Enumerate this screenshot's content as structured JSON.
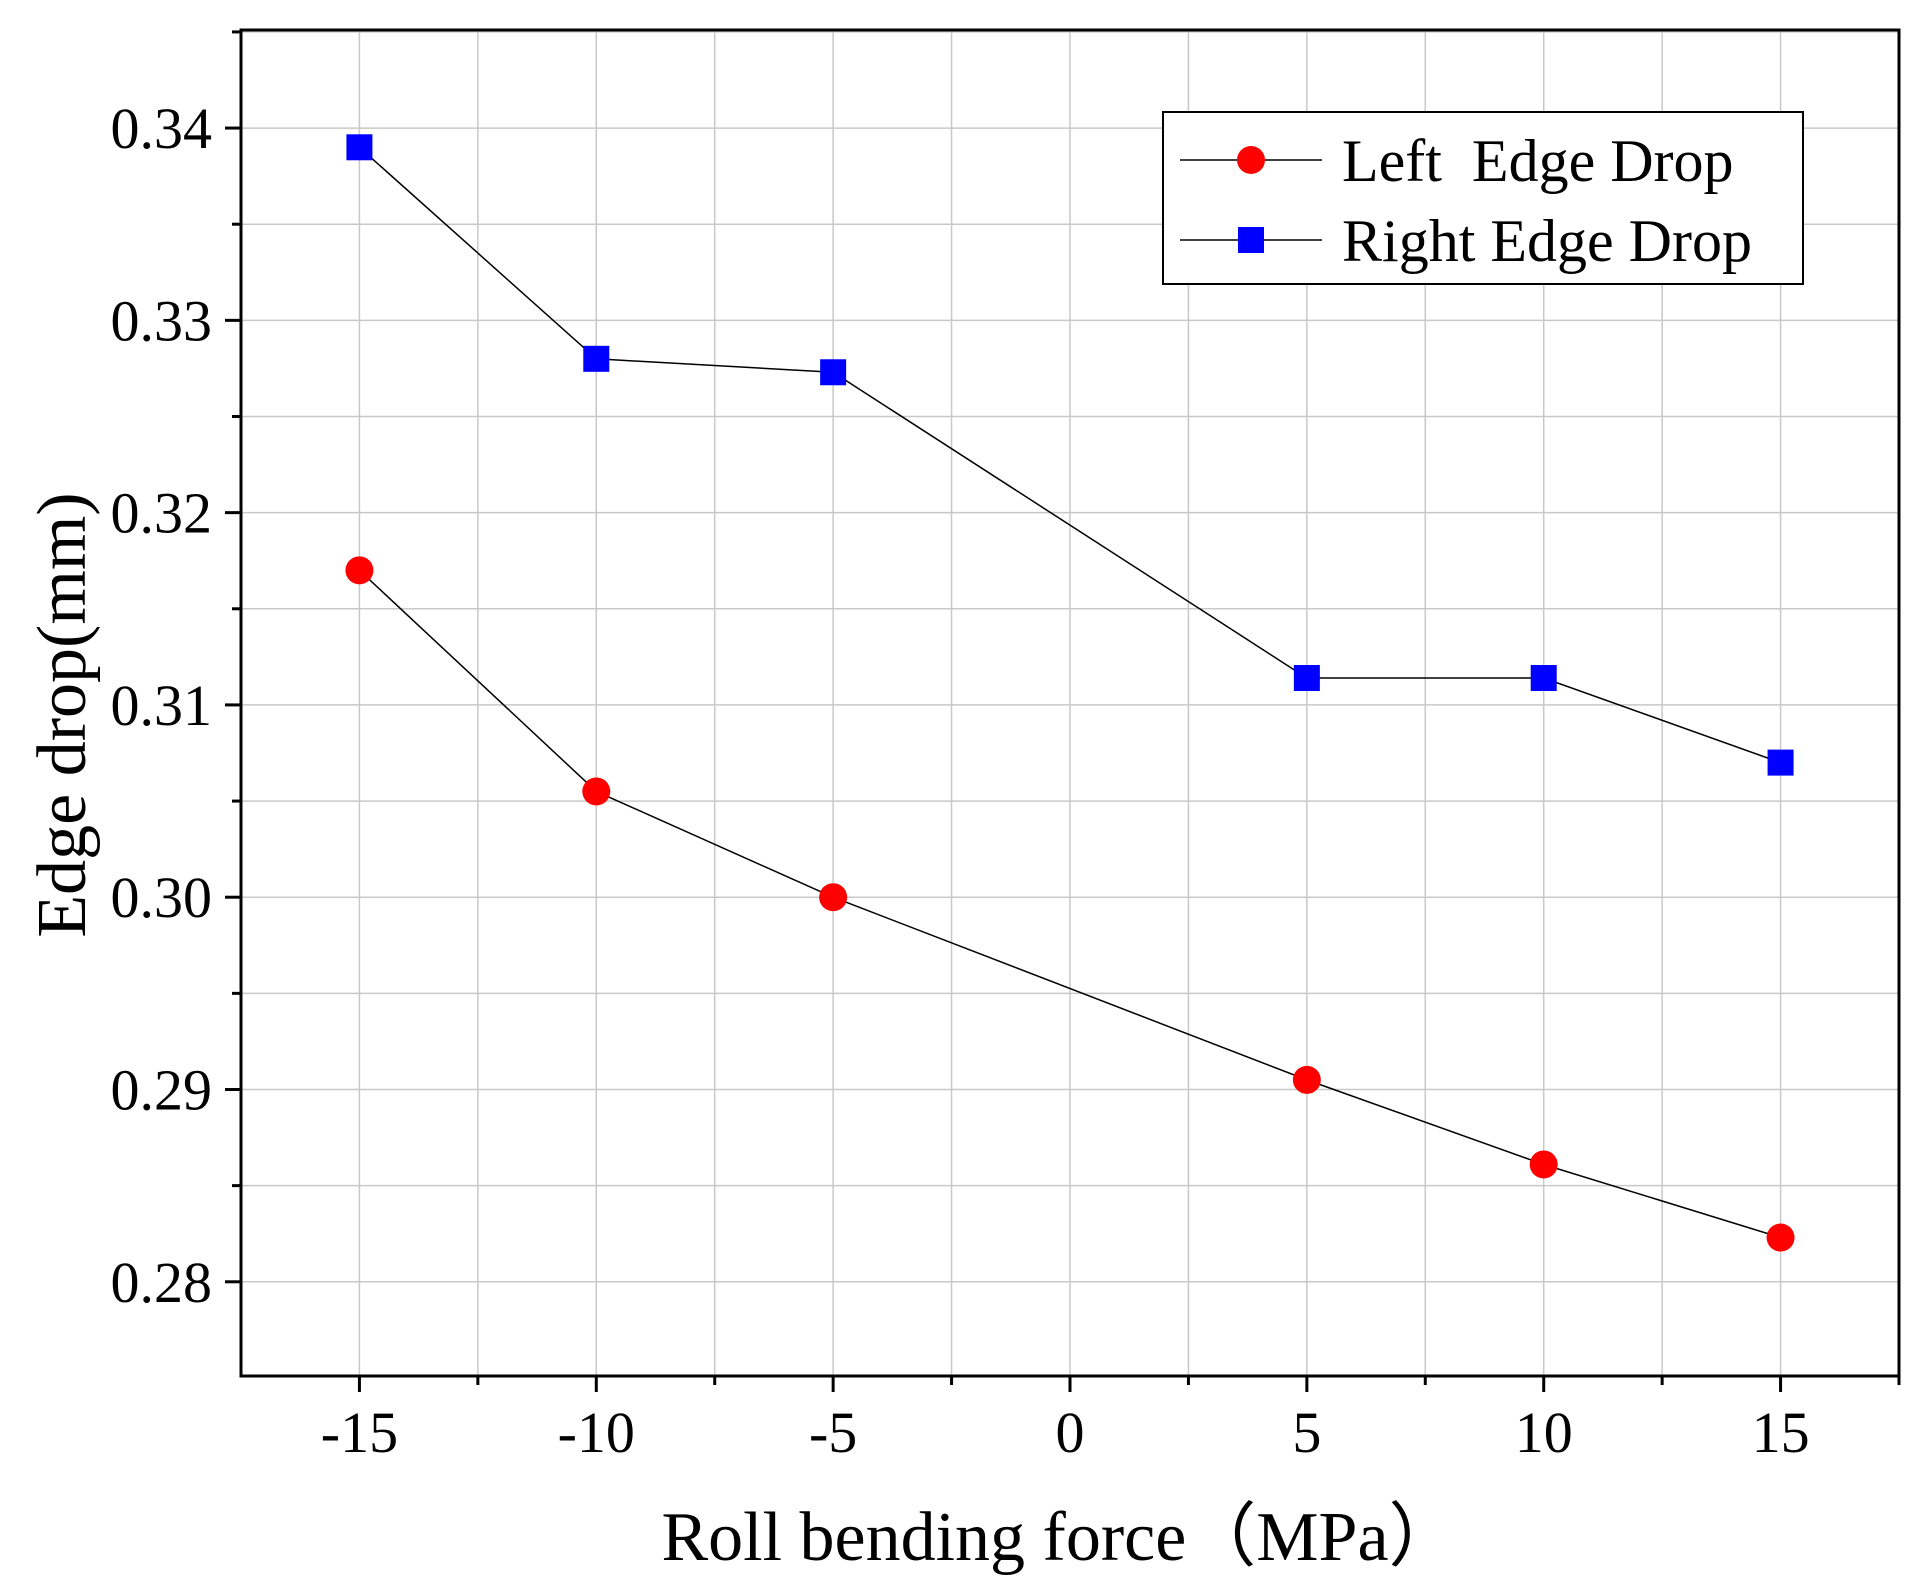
{
  "chart_data": {
    "type": "line",
    "title": "",
    "xlabel": "Roll bending force（MPa）",
    "ylabel": "Edge drop(mm)",
    "xlim": [
      -17.5,
      17.5
    ],
    "ylim": [
      0.2751,
      0.3451
    ],
    "x_ticks": [
      -15,
      -10,
      -5,
      0,
      5,
      10,
      15
    ],
    "x_tick_labels": [
      "-15",
      "-10",
      "-5",
      "0",
      "5",
      "10",
      "15"
    ],
    "y_ticks": [
      0.28,
      0.29,
      0.3,
      0.31,
      0.32,
      0.33,
      0.34
    ],
    "y_tick_labels": [
      "0.28",
      "0.29",
      "0.30",
      "0.31",
      "0.32",
      "0.33",
      "0.34"
    ],
    "grid": true,
    "legend_position": "top-right",
    "series": [
      {
        "name": "Left  Edge Drop",
        "marker": "circle",
        "color": "#ff0000",
        "x": [
          -15,
          -10,
          -5,
          5,
          10,
          15
        ],
        "y": [
          0.317,
          0.3055,
          0.3,
          0.2905,
          0.2861,
          0.2823
        ]
      },
      {
        "name": "Right Edge Drop",
        "marker": "square",
        "color": "#0000ff",
        "x": [
          -15,
          -10,
          -5,
          5,
          10,
          15
        ],
        "y": [
          0.339,
          0.328,
          0.3273,
          0.3114,
          0.3114,
          0.307
        ]
      }
    ]
  }
}
